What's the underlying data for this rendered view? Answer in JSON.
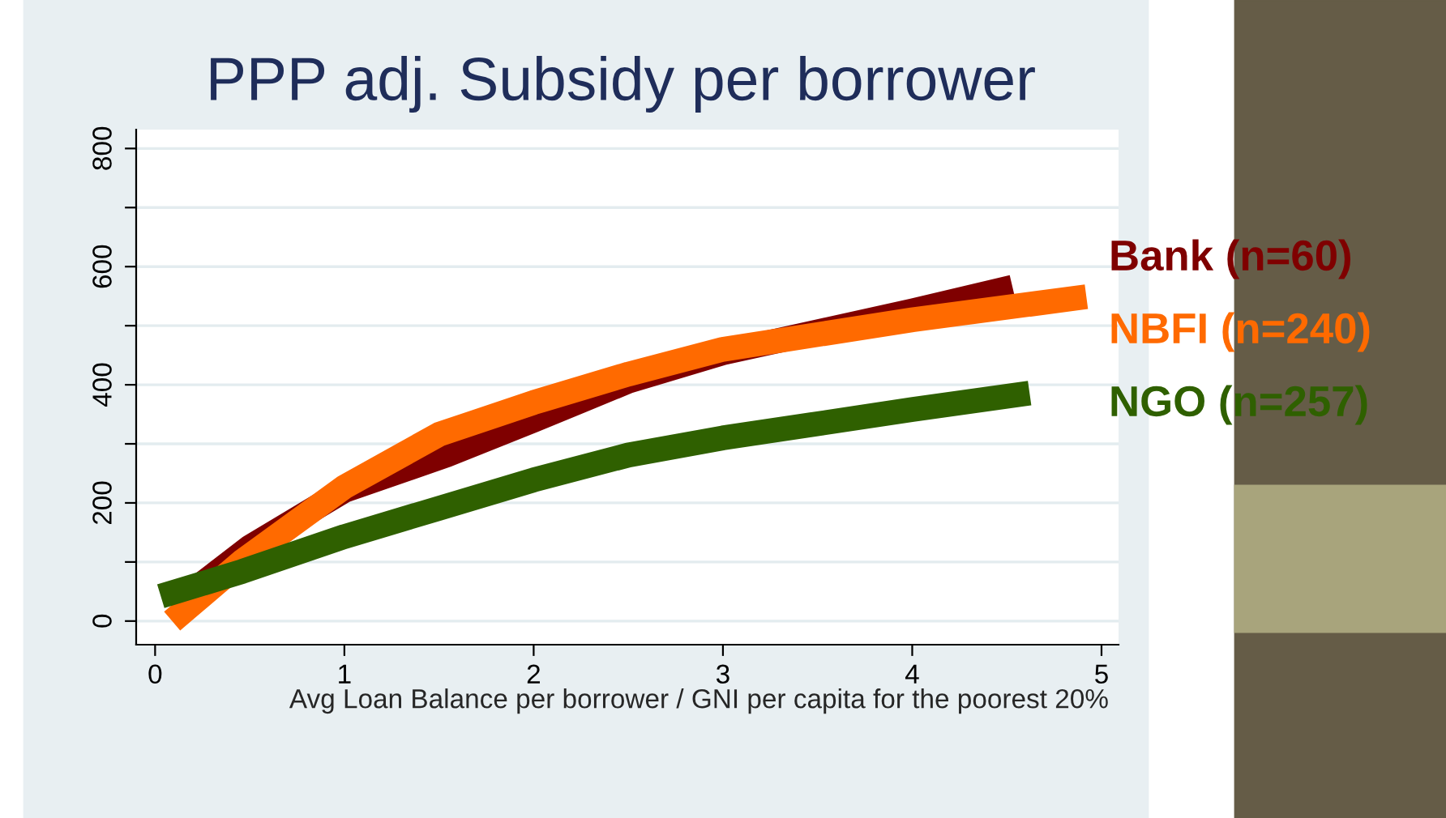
{
  "chart_data": {
    "type": "line",
    "title": "PPP adj. Subsidy per borrower",
    "xlabel": "Avg Loan Balance per borrower / GNI per capita for the poorest 20%",
    "xlim": [
      -0.1,
      5.09
    ],
    "xticks": [
      0,
      1,
      2,
      3,
      4,
      5
    ],
    "ylim": [
      -40,
      832
    ],
    "yticks": [
      0,
      {
        "value": 100,
        "label": null
      },
      200,
      {
        "value": 300,
        "label": null
      },
      400,
      {
        "value": 500,
        "label": null
      },
      600,
      {
        "value": 700,
        "label": null
      },
      800
    ],
    "grid": "y",
    "legend": false,
    "marker": "none",
    "line_style": "solid",
    "series": [
      {
        "name": "Bank (n=60)",
        "color": "#7f0000",
        "x": [
          0.09,
          0.5,
          1.0,
          1.54,
          2.0,
          2.5,
          3.0,
          4.0,
          4.53
        ],
        "values": [
          24,
          125,
          221,
          281,
          340,
          406,
          454,
          525,
          565
        ]
      },
      {
        "name": "NBFI (n=240)",
        "color": "#ff6a00",
        "x": [
          0.09,
          0.46,
          1.0,
          1.5,
          2.0,
          2.5,
          3.0,
          4.0,
          4.92
        ],
        "values": [
          0,
          101,
          227,
          316,
          370,
          418,
          460,
          510,
          549
        ]
      },
      {
        "name": "NGO (n=257)",
        "color": "#2f6000",
        "x": [
          0.03,
          0.46,
          1.0,
          1.5,
          2.0,
          2.5,
          3.0,
          4.0,
          4.62
        ],
        "values": [
          42,
          84,
          143,
          191,
          239,
          281,
          310,
          358,
          386
        ]
      }
    ]
  }
}
